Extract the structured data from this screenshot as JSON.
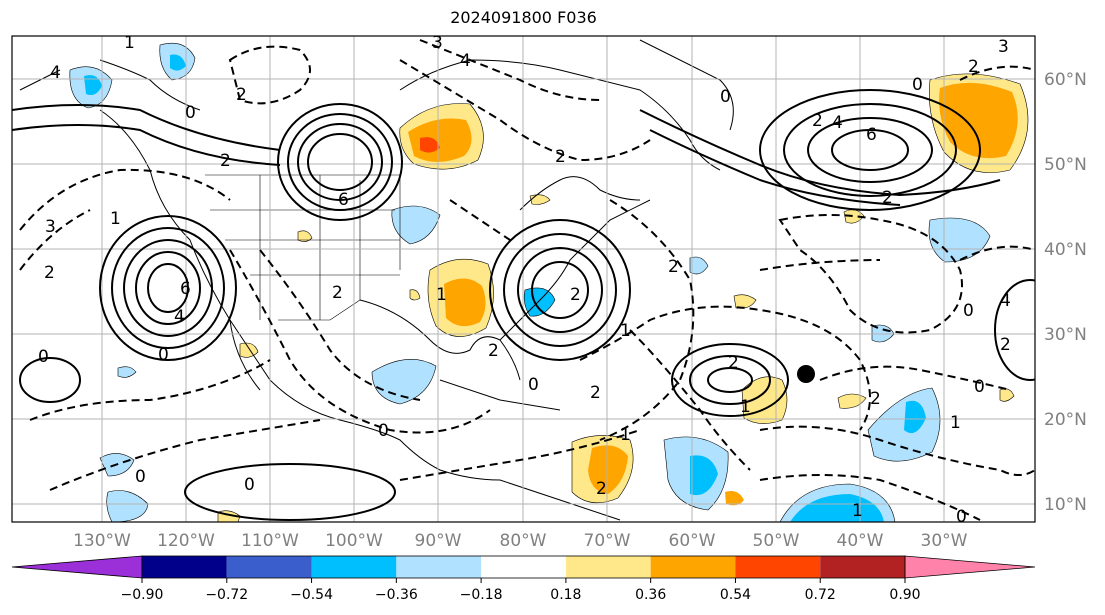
{
  "title": "2024091800 F036",
  "longitude_labels": [
    "130°W",
    "120°W",
    "110°W",
    "100°W",
    "90°W",
    "80°W",
    "70°W",
    "60°W",
    "50°W",
    "40°W",
    "30°W"
  ],
  "latitude_labels": [
    "60°N",
    "50°N",
    "40°N",
    "30°N",
    "20°N",
    "10°N"
  ],
  "colorbar": {
    "ticks": [
      "−0.90",
      "−0.72",
      "−0.54",
      "−0.36",
      "−0.18",
      "0.18",
      "0.36",
      "0.54",
      "0.72",
      "0.90"
    ],
    "colors": [
      "#9b30d9",
      "#00008b",
      "#3a5fcd",
      "#00bfff",
      "#b0e2ff",
      "#ffffff",
      "#ffe88a",
      "#ffa500",
      "#ff4500",
      "#b22222",
      "#ff82ab"
    ]
  },
  "contour_labels": [
    "1",
    "3",
    "4",
    "0",
    "2",
    "6",
    "2",
    "4",
    "0",
    "2",
    "3",
    "6",
    "2",
    "4",
    "2",
    "6",
    "0",
    "4",
    "2",
    "0",
    "2",
    "2",
    "2",
    "1",
    "1",
    "2",
    "4",
    "0",
    "2",
    "1",
    "3",
    "1",
    "0",
    "2",
    "1",
    "2",
    "2",
    "0",
    "0",
    "0",
    "1",
    "0",
    "2",
    "0",
    "1",
    "0",
    "2"
  ],
  "marker": "black-dot"
}
